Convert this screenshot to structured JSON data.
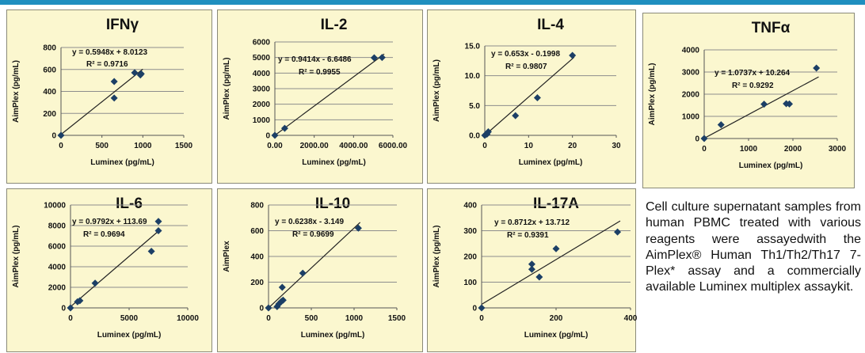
{
  "caption": "Cell culture supernatant samples from human PBMC treated with various reagents were assayedwith the AimPlex® Human Th1/Th2/Th17 7-Plex* assay and a commercially available Luminex multiplex assaykit.",
  "colors": {
    "panel_bg": "#fbf7cf",
    "marker": "#1c3f66",
    "header_bar": "#1f8fbf"
  },
  "chart_data": [
    {
      "id": "ifng",
      "type": "scatter",
      "title": "IFNγ",
      "xlabel": "Luminex (pg/mL)",
      "ylabel": "AimPlex (pg/mL)",
      "xlim": [
        0,
        1500
      ],
      "ylim": [
        0,
        800
      ],
      "xticks": [
        "0",
        "500",
        "1000",
        "1500"
      ],
      "yticks": [
        "0",
        "200",
        "400",
        "600",
        "800"
      ],
      "grid": true,
      "x": [
        0,
        650,
        650,
        900,
        970,
        980
      ],
      "y": [
        0,
        490,
        340,
        570,
        550,
        560
      ],
      "trendline": {
        "slope": 0.5948,
        "intercept": 8.0123
      },
      "equation": "y = 0.5948x + 8.0123",
      "r2": "R² = 0.9716"
    },
    {
      "id": "il2",
      "type": "scatter",
      "title": "IL-2",
      "xlabel": "Luminex (pg/mL)",
      "ylabel": "AimPlex (pg/mL)",
      "xlim": [
        0,
        6000
      ],
      "ylim": [
        0,
        6000
      ],
      "xticks": [
        "0.00",
        "2000.00",
        "4000.00",
        "6000.00"
      ],
      "yticks": [
        "0",
        "1000",
        "2000",
        "3000",
        "4000",
        "5000",
        "6000"
      ],
      "grid": true,
      "x": [
        0,
        500,
        5050,
        5450
      ],
      "y": [
        0,
        450,
        4980,
        5000
      ],
      "trendline": {
        "slope": 0.9414,
        "intercept": -6.6486
      },
      "equation": "y = 0.9414x - 6.6486",
      "r2": "R² = 0.9955"
    },
    {
      "id": "il4",
      "type": "scatter",
      "title": "IL-4",
      "xlabel": "Luminex (pg/mL)",
      "ylabel": "AimPlex (pg/mL)",
      "xlim": [
        0,
        30
      ],
      "ylim": [
        0,
        15
      ],
      "xticks": [
        "0",
        "10",
        "20",
        "30"
      ],
      "yticks": [
        "0.0",
        "5.0",
        "10.0",
        "15.0"
      ],
      "grid": true,
      "x": [
        0,
        0.5,
        0.8,
        7,
        12,
        20
      ],
      "y": [
        0,
        0.2,
        0.6,
        3.3,
        6.3,
        13.4
      ],
      "trendline": {
        "slope": 0.653,
        "intercept": -0.1998
      },
      "equation": "y = 0.653x - 0.1998",
      "r2": "R² = 0.9807"
    },
    {
      "id": "tnfa",
      "type": "scatter",
      "title": "TNFα",
      "xlabel": "Luminex (pg/mL)",
      "ylabel": "AimPlex (pg/mL)",
      "xlim": [
        0,
        3000
      ],
      "ylim": [
        0,
        4000
      ],
      "xticks": [
        "0",
        "1000",
        "2000",
        "3000"
      ],
      "yticks": [
        "0",
        "1000",
        "2000",
        "3000",
        "4000"
      ],
      "grid": true,
      "x": [
        0,
        380,
        1350,
        1850,
        1920,
        2530
      ],
      "y": [
        0,
        620,
        1550,
        1570,
        1560,
        3180
      ],
      "trendline": {
        "slope": 1.0737,
        "intercept": 10.264
      },
      "equation": "y = 1.0737x + 10.264",
      "r2": "R² = 0.9292"
    },
    {
      "id": "il6",
      "type": "scatter",
      "title": "IL-6",
      "xlabel": "Luminex (pg/mL)",
      "ylabel": "AimPlex (pg/mL)",
      "xlim": [
        0,
        10000
      ],
      "ylim": [
        0,
        10000
      ],
      "xticks": [
        "0",
        "5000",
        "10000"
      ],
      "yticks": [
        "0",
        "2000",
        "4000",
        "6000",
        "8000",
        "10000"
      ],
      "grid": true,
      "x": [
        0,
        600,
        800,
        2100,
        6900,
        7500,
        7500
      ],
      "y": [
        0,
        600,
        700,
        2400,
        5500,
        8400,
        7500
      ],
      "trendline": {
        "slope": 0.9792,
        "intercept": 113.69
      },
      "equation": "y = 0.9792x + 113.69",
      "r2": "R² = 0.9694"
    },
    {
      "id": "il10",
      "type": "scatter",
      "title": "IL-10",
      "xlabel": "Luminex (pg/mL)",
      "ylabel": "AimPlex",
      "xlim": [
        0,
        1500
      ],
      "ylim": [
        0,
        800
      ],
      "xticks": [
        "0",
        "500",
        "1000",
        "1500"
      ],
      "yticks": [
        "0",
        "200",
        "400",
        "600",
        "800"
      ],
      "grid": true,
      "x": [
        0,
        100,
        120,
        150,
        170,
        160,
        400,
        1050
      ],
      "y": [
        0,
        10,
        30,
        50,
        60,
        160,
        270,
        620
      ],
      "trendline": {
        "slope": 0.6238,
        "intercept": -3.149
      },
      "equation": "y = 0.6238x - 3.149",
      "r2": "R² = 0.9699"
    },
    {
      "id": "il17a",
      "type": "scatter",
      "title": "IL-17A",
      "xlabel": "Luminex (pg/mL)",
      "ylabel": "AimPlex (pg/mL)",
      "xlim": [
        0,
        400
      ],
      "ylim": [
        0,
        400
      ],
      "xticks": [
        "0",
        "200",
        "400"
      ],
      "yticks": [
        "0",
        "100",
        "200",
        "300",
        "400"
      ],
      "grid": true,
      "x": [
        0,
        135,
        135,
        155,
        200,
        365
      ],
      "y": [
        0,
        150,
        170,
        120,
        230,
        295
      ],
      "trendline": {
        "slope": 0.8712,
        "intercept": 13.712
      },
      "equation": "y = 0.8712x + 13.712",
      "r2": "R² = 0.9391"
    }
  ]
}
